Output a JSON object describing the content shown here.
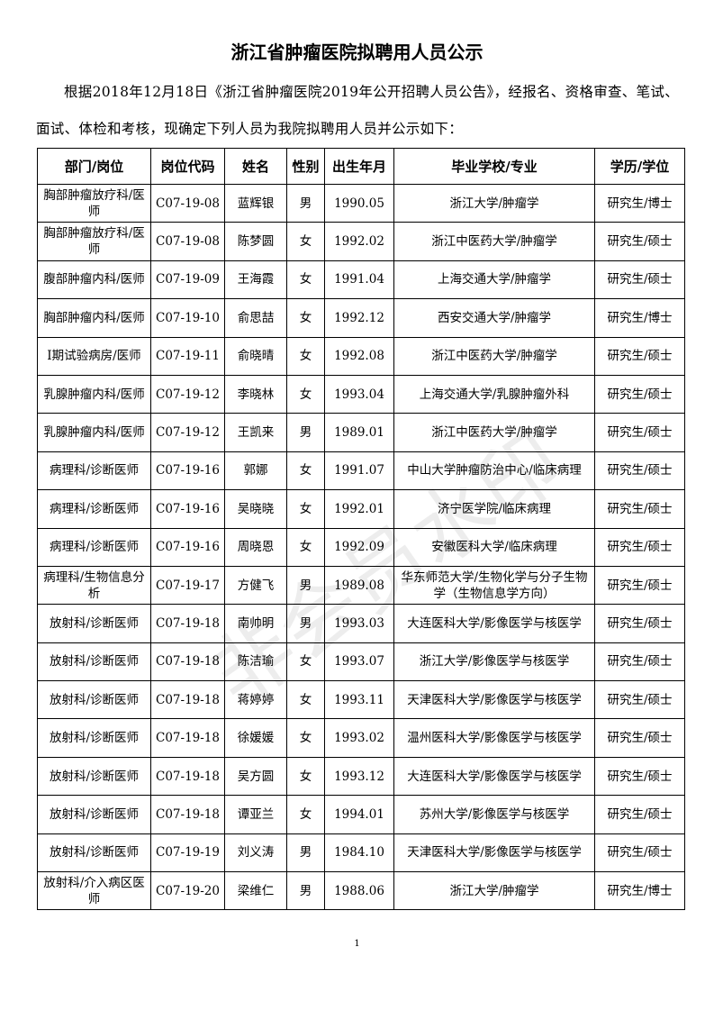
{
  "title": "浙江省肿瘤医院拟聘用人员公示",
  "intro": "根据2018年12月18日《浙江省肿瘤医院2019年公开招聘人员公告》，经报名、资格审查、笔试、面试、体检和考核，现确定下列人员为我院拟聘用人员并公示如下：",
  "watermark": "非会员水印",
  "headers": [
    "部门/岗位",
    "岗位代码",
    "姓名",
    "性别",
    "出生年月",
    "毕业学校/专业",
    "学历/学位"
  ],
  "rows": [
    [
      "胸部肿瘤放疗科/医师",
      "C07-19-08",
      "蓝辉银",
      "男",
      "1990.05",
      "浙江大学/肿瘤学",
      "研究生/博士"
    ],
    [
      "胸部肿瘤放疗科/医师",
      "C07-19-08",
      "陈梦圆",
      "女",
      "1992.02",
      "浙江中医药大学/肿瘤学",
      "研究生/硕士"
    ],
    [
      "腹部肿瘤内科/医师",
      "C07-19-09",
      "王海霞",
      "女",
      "1991.04",
      "上海交通大学/肿瘤学",
      "研究生/硕士"
    ],
    [
      "胸部肿瘤内科/医师",
      "C07-19-10",
      "俞思喆",
      "女",
      "1992.12",
      "西安交通大学/肿瘤学",
      "研究生/博士"
    ],
    [
      "I期试验病房/医师",
      "C07-19-11",
      "俞晓晴",
      "女",
      "1992.08",
      "浙江中医药大学/肿瘤学",
      "研究生/硕士"
    ],
    [
      "乳腺肿瘤内科/医师",
      "C07-19-12",
      "李晓林",
      "女",
      "1993.04",
      "上海交通大学/乳腺肿瘤外科",
      "研究生/硕士"
    ],
    [
      "乳腺肿瘤内科/医师",
      "C07-19-12",
      "王凯来",
      "男",
      "1989.01",
      "浙江中医药大学/肿瘤学",
      "研究生/硕士"
    ],
    [
      "病理科/诊断医师",
      "C07-19-16",
      "郭娜",
      "女",
      "1991.07",
      "中山大学肿瘤防治中心/临床病理",
      "研究生/硕士"
    ],
    [
      "病理科/诊断医师",
      "C07-19-16",
      "吴晓晓",
      "女",
      "1992.01",
      "济宁医学院/临床病理",
      "研究生/硕士"
    ],
    [
      "病理科/诊断医师",
      "C07-19-16",
      "周晓恩",
      "女",
      "1992.09",
      "安徽医科大学/临床病理",
      "研究生/硕士"
    ],
    [
      "病理科/生物信息分析",
      "C07-19-17",
      "方健飞",
      "男",
      "1989.08",
      "华东师范大学/生物化学与分子生物学（生物信息学方向）",
      "研究生/硕士"
    ],
    [
      "放射科/诊断医师",
      "C07-19-18",
      "南帅明",
      "男",
      "1993.03",
      "大连医科大学/影像医学与核医学",
      "研究生/硕士"
    ],
    [
      "放射科/诊断医师",
      "C07-19-18",
      "陈洁瑜",
      "女",
      "1993.07",
      "浙江大学/影像医学与核医学",
      "研究生/硕士"
    ],
    [
      "放射科/诊断医师",
      "C07-19-18",
      "蒋婷婷",
      "女",
      "1993.11",
      "天津医科大学/影像医学与核医学",
      "研究生/硕士"
    ],
    [
      "放射科/诊断医师",
      "C07-19-18",
      "徐媛媛",
      "女",
      "1993.02",
      "温州医科大学/影像医学与核医学",
      "研究生/硕士"
    ],
    [
      "放射科/诊断医师",
      "C07-19-18",
      "吴方圆",
      "女",
      "1993.12",
      "大连医科大学/影像医学与核医学",
      "研究生/硕士"
    ],
    [
      "放射科/诊断医师",
      "C07-19-18",
      "谭亚兰",
      "女",
      "1994.01",
      "苏州大学/影像医学与核医学",
      "研究生/硕士"
    ],
    [
      "放射科/诊断医师",
      "C07-19-19",
      "刘义涛",
      "男",
      "1984.10",
      "天津医科大学/影像医学与核医学",
      "研究生/硕士"
    ],
    [
      "放射科/介入病区医师",
      "C07-19-20",
      "梁维仁",
      "男",
      "1988.06",
      "浙江大学/肿瘤学",
      "研究生/博士"
    ]
  ],
  "page_number": "1"
}
